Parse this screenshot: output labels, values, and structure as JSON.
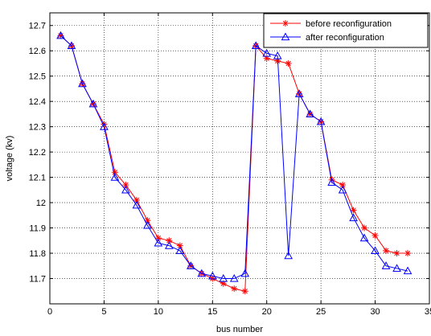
{
  "chart_data": {
    "type": "line",
    "xlabel": "bus number",
    "ylabel": "voltage (kv)",
    "xlim": [
      0,
      35
    ],
    "ylim": [
      11.6,
      12.75
    ],
    "xticks": [
      0,
      5,
      10,
      15,
      20,
      25,
      30,
      35
    ],
    "yticks": [
      11.7,
      11.8,
      11.9,
      12.0,
      12.1,
      12.2,
      12.3,
      12.4,
      12.5,
      12.6,
      12.7
    ],
    "ytick_labels": [
      "11.7",
      "11.8",
      "11.9",
      "12",
      "12.1",
      "12.2",
      "12.3",
      "12.4",
      "12.5",
      "12.6",
      "12.7"
    ],
    "grid": true,
    "grid_style": "dotted",
    "legend_position": "top-right",
    "x": [
      1,
      2,
      3,
      4,
      5,
      6,
      7,
      8,
      9,
      10,
      11,
      12,
      13,
      14,
      15,
      16,
      17,
      18,
      19,
      20,
      21,
      22,
      23,
      24,
      25,
      26,
      27,
      28,
      29,
      30,
      31,
      32,
      33
    ],
    "series": [
      {
        "name": "before reconfiguration",
        "color": "#ff0000",
        "marker": "asterisk",
        "values": [
          12.66,
          12.62,
          12.47,
          12.39,
          12.31,
          12.12,
          12.07,
          12.01,
          11.93,
          11.86,
          11.85,
          11.83,
          11.75,
          11.72,
          11.7,
          11.68,
          11.66,
          11.65,
          12.62,
          12.57,
          12.56,
          12.55,
          12.43,
          12.35,
          12.32,
          12.09,
          12.07,
          11.97,
          11.9,
          11.87,
          11.81,
          11.8,
          11.8
        ]
      },
      {
        "name": "after reconfiguration",
        "color": "#0000ff",
        "marker": "triangle",
        "values": [
          12.66,
          12.62,
          12.47,
          12.39,
          12.3,
          12.1,
          12.05,
          11.99,
          11.91,
          11.84,
          11.83,
          11.81,
          11.75,
          11.72,
          11.71,
          11.7,
          11.7,
          11.72,
          12.62,
          12.59,
          12.58,
          11.79,
          12.43,
          12.35,
          12.32,
          12.08,
          12.05,
          11.94,
          11.86,
          11.81,
          11.75,
          11.74,
          11.73
        ]
      }
    ]
  }
}
